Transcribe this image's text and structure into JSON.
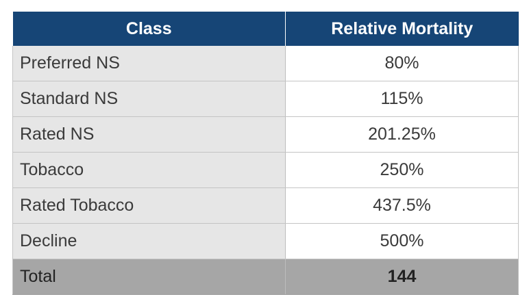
{
  "table": {
    "headers": [
      "Class",
      "Relative Mortality"
    ],
    "rows": [
      {
        "class": "Preferred NS",
        "mortality": "80%"
      },
      {
        "class": "Standard NS",
        "mortality": "115%"
      },
      {
        "class": "Rated NS",
        "mortality": "201.25%"
      },
      {
        "class": "Tobacco",
        "mortality": "250%"
      },
      {
        "class": "Rated Tobacco",
        "mortality": "437.5%"
      },
      {
        "class": "Decline",
        "mortality": "500%"
      }
    ],
    "total": {
      "label": "Total",
      "value": "144"
    },
    "colors": {
      "header_bg": "#164576",
      "class_col_bg": "#e6e6e6",
      "total_row_bg": "#a6a6a6"
    }
  }
}
